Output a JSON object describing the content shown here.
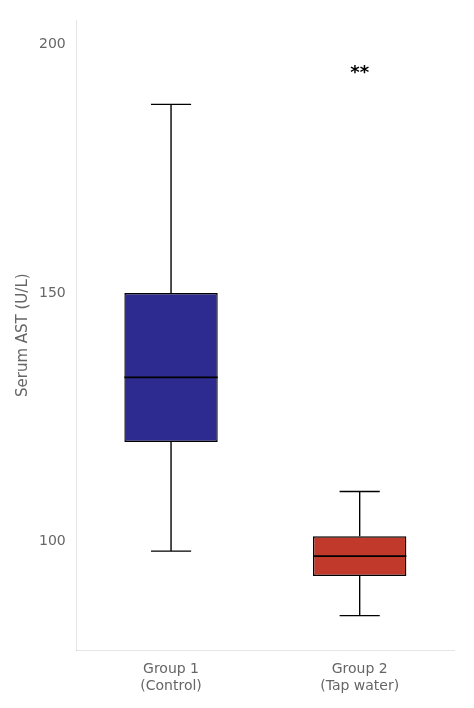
{
  "chart_data": {
    "type": "box",
    "categories": [
      "Group 1\n(Control)",
      "Group 2\n(Tap water)"
    ],
    "whislo": [
      98,
      85
    ],
    "q1": [
      120,
      93
    ],
    "med": [
      133,
      97
    ],
    "q3": [
      150,
      101
    ],
    "whishi": [
      188,
      110
    ],
    "colors": [
      "#2D2B8F",
      "#C0392B"
    ],
    "ylabel": "Serum AST (U/L)",
    "ylim": [
      78,
      205
    ],
    "yticks": [
      100,
      150,
      200
    ],
    "annotation": {
      "text": "**",
      "category": "Group 2\n(Tap water)",
      "y": 196
    },
    "grid": false
  }
}
